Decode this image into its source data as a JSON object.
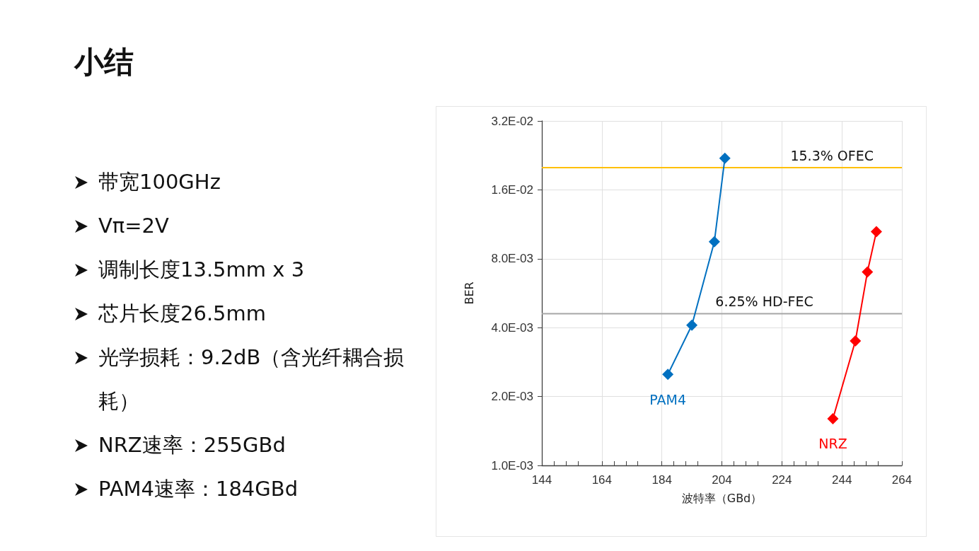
{
  "chart_data": [
    {
      "type": "other",
      "title": "小结",
      "annotations": [
        "带宽100GHz",
        "Vπ=2V",
        "调制长度13.5mm x 3",
        "芯片长度26.5mm",
        "光学损耗：9.2dB（含光纤耦合损耗）",
        "NRZ速率：255GBd",
        "PAM4速率：184GBd"
      ]
    },
    {
      "type": "line",
      "xlabel": "波特率（GBd）",
      "ylabel": "BER",
      "log": "y",
      "grid": true,
      "marker": "diamond",
      "line_style": "solid",
      "legend": false,
      "xlim": [
        144,
        264
      ],
      "xticks": [
        144,
        164,
        184,
        204,
        224,
        244,
        264
      ],
      "ylim": [
        0.001,
        0.032
      ],
      "yticks": [
        {
          "value": 0.001,
          "label": "1.0E-03"
        },
        {
          "value": 0.002,
          "label": "2.0E-03"
        },
        {
          "value": 0.004,
          "label": "4.0E-03"
        },
        {
          "value": 0.008,
          "label": "8.0E-03"
        },
        {
          "value": 0.016,
          "label": "1.6E-02"
        },
        {
          "value": 0.032,
          "label": "3.2E-02"
        }
      ],
      "series": [
        {
          "name": "PAM4",
          "color": "#0070c0",
          "x": [
            186,
            194,
            201.5,
            205
          ],
          "values": [
            0.0025,
            0.0041,
            0.0095,
            0.022
          ]
        },
        {
          "name": "NRZ",
          "color": "#ff0000",
          "x": [
            241,
            248.5,
            252.5,
            255.5
          ],
          "values": [
            0.0016,
            0.0035,
            0.007,
            0.0105
          ]
        }
      ],
      "ref_lines": [
        {
          "axis": "y",
          "value": 0.02,
          "label": "15.3% OFEC",
          "color": "#ffc000"
        },
        {
          "axis": "y",
          "value": 0.0046,
          "label": "6.25% HD-FEC",
          "color": "#a6a6a6"
        }
      ]
    }
  ]
}
